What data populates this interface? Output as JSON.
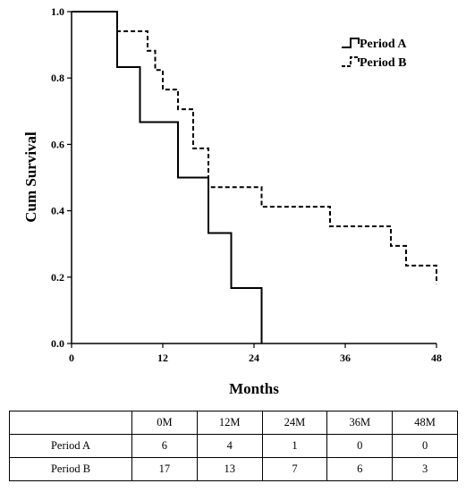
{
  "chart_data": {
    "type": "line",
    "subtype": "kaplan-meier step",
    "xlabel": "Months",
    "ylabel": "Cum Survival",
    "xlim": [
      0,
      48
    ],
    "ylim": [
      0,
      1.0
    ],
    "xticks": [
      0,
      12,
      24,
      36,
      48
    ],
    "xtick_labels": [
      "0",
      "12",
      "24",
      "36",
      "48"
    ],
    "yticks": [
      0,
      0.2,
      0.4,
      0.6,
      0.8,
      1.0
    ],
    "ytick_labels": [
      "0.0",
      "0.2",
      "0.4",
      "0.6",
      "0.8",
      "1.0"
    ],
    "grid": false,
    "legend": "top-right",
    "series": [
      {
        "name": "Period A",
        "style": "solid",
        "color": "#000000",
        "x": [
          0,
          6,
          9,
          14,
          18,
          21,
          25,
          25
        ],
        "y": [
          1.0,
          0.833,
          0.667,
          0.5,
          0.333,
          0.167,
          0.167,
          0.0
        ]
      },
      {
        "name": "Period B",
        "style": "dashed",
        "color": "#000000",
        "x": [
          0,
          6,
          10,
          11,
          12,
          14,
          16,
          18,
          25,
          34,
          42,
          44,
          48,
          48
        ],
        "y": [
          1.0,
          0.941,
          0.882,
          0.824,
          0.765,
          0.706,
          0.588,
          0.471,
          0.412,
          0.353,
          0.294,
          0.235,
          0.235,
          0.18
        ]
      }
    ]
  },
  "risk_table": {
    "header": [
      "",
      "0M",
      "12M",
      "24M",
      "36M",
      "48M"
    ],
    "rows": [
      {
        "label": "Period A",
        "values": [
          "6",
          "4",
          "1",
          "0",
          "0"
        ]
      },
      {
        "label": "Period B",
        "values": [
          "17",
          "13",
          "7",
          "6",
          "3"
        ]
      }
    ]
  }
}
